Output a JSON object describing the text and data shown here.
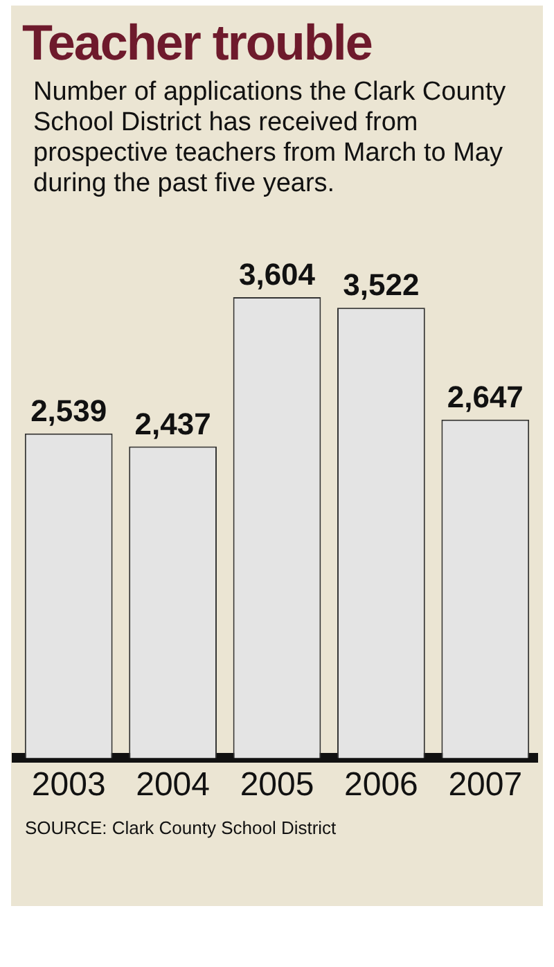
{
  "chart_data": {
    "type": "bar",
    "title": "Teacher trouble",
    "subtitle": "Number of applications the Clark County School District has received from prospective teachers from March to May during the past five years.",
    "categories": [
      "2003",
      "2004",
      "2005",
      "2006",
      "2007"
    ],
    "values": [
      2539,
      2437,
      3604,
      3522,
      2647
    ],
    "value_labels": [
      "2,539",
      "2,437",
      "3,604",
      "3,522",
      "2,647"
    ],
    "color": "#e4e4e4",
    "annotations": [
      "SOURCE: Clark County School District"
    ],
    "grid": false,
    "legend": false,
    "tick_labels": "x"
  }
}
